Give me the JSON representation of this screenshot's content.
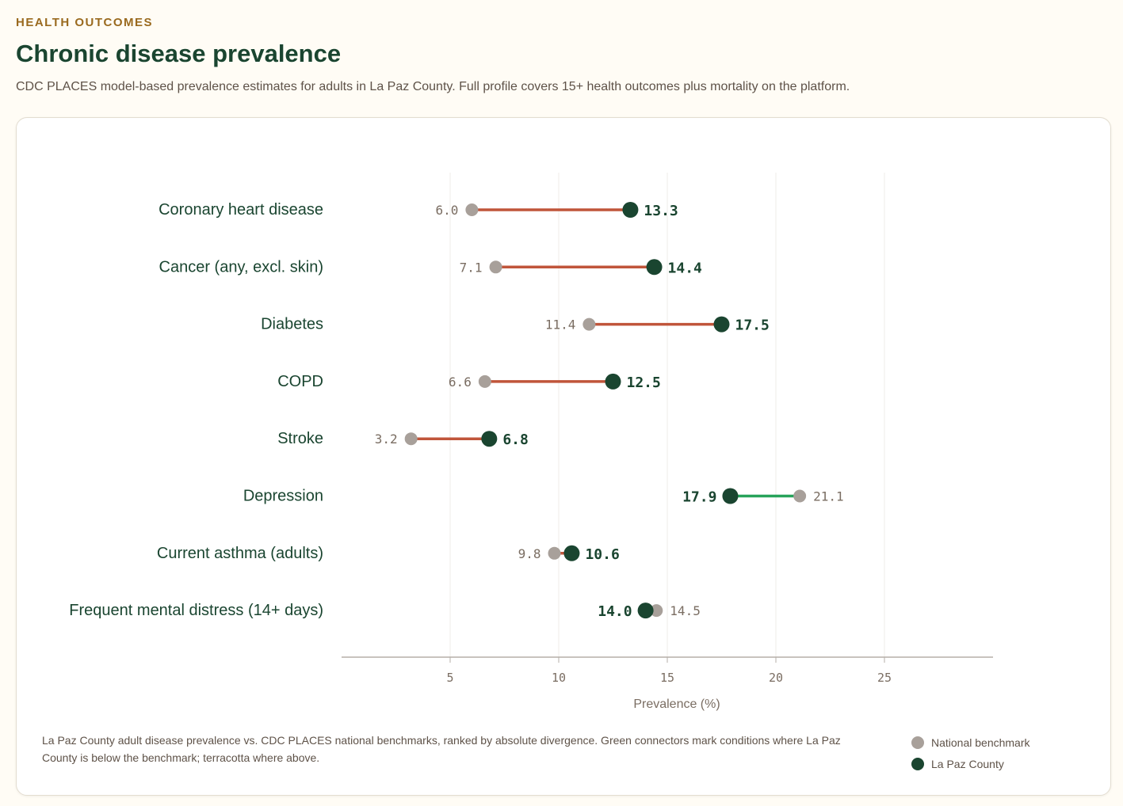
{
  "header": {
    "eyebrow": "HEALTH OUTCOMES",
    "title": "Chronic disease prevalence",
    "subtitle": "CDC PLACES model-based prevalence estimates for adults in La Paz County. Full profile covers 15+ health outcomes plus mortality on the platform."
  },
  "chart_data": {
    "type": "dumbbell",
    "categories": [
      "Coronary heart disease",
      "Cancer (any, excl. skin)",
      "Diabetes",
      "COPD",
      "Stroke",
      "Depression",
      "Current asthma (adults)",
      "Frequent mental distress (14+ days)"
    ],
    "series": [
      {
        "name": "National benchmark",
        "values": [
          6.0,
          7.1,
          11.4,
          6.6,
          3.2,
          21.1,
          9.8,
          14.5
        ],
        "color": "#a8a09a"
      },
      {
        "name": "La Paz County",
        "values": [
          13.3,
          14.4,
          17.5,
          12.5,
          6.8,
          17.9,
          10.6,
          14.0
        ],
        "color": "#1a4530"
      }
    ],
    "connector_colors": {
      "above": "#c0553a",
      "below": "#27a35a"
    },
    "xlabel": "Prevalence (%)",
    "xlim": [
      0,
      30
    ],
    "xticks": [
      5,
      10,
      15,
      20,
      25
    ],
    "grid": true,
    "legend": "bottom-right"
  },
  "footer": {
    "caption": "La Paz County adult disease prevalence vs. CDC PLACES national benchmarks, ranked by absolute divergence. Green connectors mark conditions where La Paz County is below the benchmark; terracotta where above."
  }
}
